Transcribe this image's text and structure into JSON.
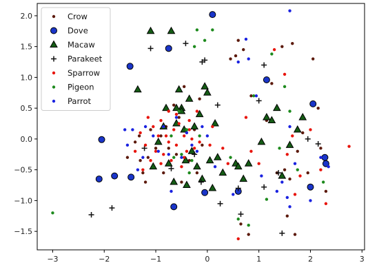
{
  "chart_data": {
    "type": "scatter",
    "title": "",
    "xlabel": "",
    "ylabel": "",
    "xlim": [
      -3.3,
      3.05
    ],
    "ylim": [
      -1.8,
      2.2
    ],
    "xticks": [
      -3,
      -2,
      -1,
      0,
      1,
      2,
      3
    ],
    "yticks": [
      -1.5,
      -1.0,
      -0.5,
      0.0,
      0.5,
      1.0,
      1.5,
      2.0
    ],
    "grid": false,
    "legend_position": "top-left",
    "series": [
      {
        "name": "Crow",
        "marker": "circle-small",
        "color": "#5c1a0c",
        "points": [
          [
            -1.55,
            -0.3
          ],
          [
            -1.4,
            -0.05
          ],
          [
            -1.32,
            0.05
          ],
          [
            -1.3,
            -0.35
          ],
          [
            -1.25,
            -0.55
          ],
          [
            -1.2,
            -0.7
          ],
          [
            -1.15,
            -0.3
          ],
          [
            -1.1,
            0.15
          ],
          [
            -1.05,
            -0.45
          ],
          [
            -1.0,
            -0.15
          ],
          [
            -0.9,
            0.05
          ],
          [
            -0.85,
            -0.55
          ],
          [
            -0.8,
            0.2
          ],
          [
            -0.75,
            -0.15
          ],
          [
            -0.65,
            0.55
          ],
          [
            -0.6,
            -0.25
          ],
          [
            -0.5,
            -0.7
          ],
          [
            -0.55,
            0.35
          ],
          [
            -0.45,
            0.85
          ],
          [
            -0.35,
            -0.35
          ],
          [
            -0.25,
            0.15
          ],
          [
            -0.2,
            -0.55
          ],
          [
            -0.15,
            0.65
          ],
          [
            -0.1,
            -0.1
          ],
          [
            0.45,
            1.3
          ],
          [
            0.55,
            1.35
          ],
          [
            0.6,
            1.6
          ],
          [
            0.65,
            -1.38
          ],
          [
            0.7,
            1.45
          ],
          [
            0.8,
            -1.55
          ],
          [
            0.85,
            0.7
          ],
          [
            1.05,
            -0.05
          ],
          [
            1.15,
            0.3
          ],
          [
            1.25,
            0.9
          ],
          [
            1.35,
            -0.55
          ],
          [
            1.45,
            1.5
          ],
          [
            1.5,
            -0.5
          ],
          [
            1.55,
            -1.25
          ],
          [
            1.65,
            1.55
          ],
          [
            1.7,
            -1.55
          ],
          [
            1.75,
            -0.2
          ],
          [
            1.85,
            0.1
          ],
          [
            1.95,
            -0.55
          ],
          [
            2.05,
            1.3
          ],
          [
            2.15,
            0.5
          ],
          [
            2.2,
            -0.15
          ],
          [
            2.3,
            -0.85
          ],
          [
            1.6,
            -0.65
          ]
        ]
      },
      {
        "name": "Dove",
        "marker": "circle-large",
        "color": "#1a35c9",
        "points": [
          [
            0.1,
            2.02
          ],
          [
            -0.75,
            1.47
          ],
          [
            -1.5,
            1.18
          ],
          [
            -2.05,
            -0.01
          ],
          [
            -2.1,
            -0.65
          ],
          [
            -1.8,
            -0.6
          ],
          [
            -1.48,
            -0.62
          ],
          [
            -0.65,
            -1.1
          ],
          [
            -0.05,
            -0.87
          ],
          [
            0.6,
            -0.85
          ],
          [
            1.15,
            0.96
          ],
          [
            2.05,
            0.57
          ],
          [
            2.28,
            -0.3
          ],
          [
            2.3,
            -0.4
          ],
          [
            2.0,
            -0.78
          ]
        ]
      },
      {
        "name": "Macaw",
        "marker": "triangle",
        "color": "#155c15",
        "points": [
          [
            -1.1,
            1.75
          ],
          [
            -1.35,
            0.8
          ],
          [
            -0.7,
            1.75
          ],
          [
            -0.6,
            0.25
          ],
          [
            -0.55,
            0.8
          ],
          [
            -0.5,
            0.5
          ],
          [
            -0.45,
            0.15
          ],
          [
            -0.42,
            -0.35
          ],
          [
            -0.35,
            0.65
          ],
          [
            -0.3,
            -0.2
          ],
          [
            -0.25,
            0.2
          ],
          [
            -0.2,
            -0.45
          ],
          [
            -0.15,
            0.4
          ],
          [
            -0.1,
            -0.65
          ],
          [
            -0.05,
            0.85
          ],
          [
            0.0,
            0.75
          ],
          [
            0.05,
            -0.35
          ],
          [
            0.15,
            0.25
          ],
          [
            0.2,
            -0.3
          ],
          [
            0.3,
            -0.55
          ],
          [
            0.55,
            -0.4
          ],
          [
            0.6,
            -0.45
          ],
          [
            0.7,
            -0.65
          ],
          [
            0.8,
            -0.4
          ],
          [
            -0.75,
            -0.4
          ],
          [
            -0.65,
            -0.7
          ],
          [
            -0.85,
            0.2
          ],
          [
            -0.95,
            -0.05
          ],
          [
            -1.05,
            -0.45
          ],
          [
            -0.8,
            0.5
          ],
          [
            -0.4,
            -0.75
          ],
          [
            0.1,
            -0.8
          ],
          [
            1.05,
            -0.05
          ],
          [
            1.15,
            0.35
          ],
          [
            1.25,
            0.3
          ],
          [
            1.35,
            0.5
          ],
          [
            1.45,
            -0.6
          ],
          [
            1.6,
            -0.1
          ],
          [
            1.75,
            0.15
          ],
          [
            1.85,
            0.35
          ],
          [
            -0.6,
            0.5
          ],
          [
            -0.5,
            0.45
          ]
        ]
      },
      {
        "name": "Parakeet",
        "marker": "plus",
        "color": "#111111",
        "points": [
          [
            -1.1,
            1.47
          ],
          [
            -0.42,
            1.55
          ],
          [
            -0.1,
            1.25
          ],
          [
            -0.05,
            1.28
          ],
          [
            0.2,
            0.55
          ],
          [
            -1.22,
            -0.15
          ],
          [
            -0.25,
            -0.25
          ],
          [
            -0.7,
            -0.48
          ],
          [
            -0.12,
            -0.7
          ],
          [
            0.25,
            -1.05
          ],
          [
            0.6,
            -0.8
          ],
          [
            0.65,
            -1.22
          ],
          [
            1.1,
            1.2
          ],
          [
            1.0,
            0.62
          ],
          [
            1.1,
            -0.78
          ],
          [
            1.38,
            -0.55
          ],
          [
            1.45,
            -1.53
          ],
          [
            1.95,
            0.0
          ],
          [
            2.15,
            -0.08
          ],
          [
            -1.85,
            -1.12
          ],
          [
            -2.25,
            -1.23
          ]
        ]
      },
      {
        "name": "Sparrow",
        "marker": "circle-small",
        "color": "#e8150c",
        "points": [
          [
            -1.4,
            -0.2
          ],
          [
            -1.3,
            0.1
          ],
          [
            -1.25,
            -0.5
          ],
          [
            -1.2,
            -0.1
          ],
          [
            -1.15,
            0.35
          ],
          [
            -1.1,
            -0.35
          ],
          [
            -1.05,
            0.2
          ],
          [
            -1.0,
            -0.2
          ],
          [
            -0.95,
            0.05
          ],
          [
            -0.9,
            0.3
          ],
          [
            -0.85,
            -0.25
          ],
          [
            -0.8,
            0.05
          ],
          [
            -0.75,
            0.45
          ],
          [
            -0.7,
            -0.35
          ],
          [
            -0.65,
            0.15
          ],
          [
            -0.6,
            -0.1
          ],
          [
            -0.55,
            0.25
          ],
          [
            -0.5,
            -0.45
          ],
          [
            -0.45,
            0.05
          ],
          [
            -0.4,
            -0.2
          ],
          [
            -0.35,
            0.3
          ],
          [
            -0.3,
            0.0
          ],
          [
            -0.25,
            -0.15
          ],
          [
            -0.2,
            0.45
          ],
          [
            -0.15,
            -0.05
          ],
          [
            0.05,
            -0.1
          ],
          [
            0.1,
            0.2
          ],
          [
            0.3,
            -0.15
          ],
          [
            0.4,
            -0.4
          ],
          [
            0.6,
            -1.62
          ],
          [
            0.75,
            0.35
          ],
          [
            0.85,
            -0.2
          ],
          [
            1.0,
            -0.4
          ],
          [
            1.3,
            1.45
          ],
          [
            1.5,
            1.05
          ],
          [
            1.55,
            -0.25
          ],
          [
            1.65,
            0.05
          ],
          [
            1.7,
            -0.9
          ],
          [
            1.8,
            -0.6
          ],
          [
            2.0,
            0.15
          ],
          [
            2.2,
            -0.5
          ],
          [
            2.3,
            -1.05
          ],
          [
            2.75,
            -0.12
          ],
          [
            -0.75,
            -0.05
          ],
          [
            -0.6,
            0.4
          ],
          [
            -0.45,
            -0.3
          ],
          [
            -0.35,
            0.15
          ],
          [
            -0.9,
            -0.4
          ]
        ]
      },
      {
        "name": "Pigeon",
        "marker": "circle-small",
        "color": "#1d8a1d",
        "points": [
          [
            -0.2,
            1.77
          ],
          [
            0.1,
            1.77
          ],
          [
            -0.05,
            1.6
          ],
          [
            -0.25,
            1.5
          ],
          [
            -0.55,
            0.45
          ],
          [
            -0.4,
            0.15
          ],
          [
            -0.3,
            -0.35
          ],
          [
            -0.15,
            0.05
          ],
          [
            -0.5,
            -0.25
          ],
          [
            -0.7,
            0.05
          ],
          [
            -0.65,
            -0.3
          ],
          [
            0.45,
            -0.3
          ],
          [
            0.6,
            -1.3
          ],
          [
            0.8,
            -1.4
          ],
          [
            0.9,
            0.7
          ],
          [
            1.15,
            -0.98
          ],
          [
            1.25,
            1.38
          ],
          [
            1.4,
            -0.15
          ],
          [
            1.5,
            0.85
          ],
          [
            1.6,
            0.45
          ],
          [
            1.75,
            -0.5
          ],
          [
            2.25,
            -0.7
          ],
          [
            -3.0,
            -1.2
          ],
          [
            -0.35,
            -0.55
          ]
        ]
      },
      {
        "name": "Parrot",
        "marker": "circle-small",
        "color": "#1a22e0",
        "points": [
          [
            1.6,
            2.08
          ],
          [
            -1.6,
            0.15
          ],
          [
            -1.45,
            0.15
          ],
          [
            -1.55,
            -0.1
          ],
          [
            -1.35,
            -0.5
          ],
          [
            -1.25,
            -0.3
          ],
          [
            -1.2,
            0.2
          ],
          [
            -1.05,
            0.05
          ],
          [
            -0.95,
            -0.2
          ],
          [
            -0.85,
            0.2
          ],
          [
            -0.75,
            -0.25
          ],
          [
            -0.6,
            0.35
          ],
          [
            -0.5,
            -0.3
          ],
          [
            -0.4,
            0.1
          ],
          [
            -0.3,
            -0.1
          ],
          [
            -0.2,
            -0.2
          ],
          [
            -0.1,
            0.2
          ],
          [
            0.0,
            0.05
          ],
          [
            0.15,
            -0.45
          ],
          [
            0.6,
            1.25
          ],
          [
            0.75,
            1.62
          ],
          [
            0.8,
            1.3
          ],
          [
            0.95,
            0.7
          ],
          [
            1.05,
            -0.6
          ],
          [
            1.35,
            -0.85
          ],
          [
            1.45,
            -0.7
          ],
          [
            1.55,
            -0.95
          ],
          [
            1.6,
            0.2
          ],
          [
            1.7,
            -0.4
          ],
          [
            2.0,
            -1.0
          ],
          [
            2.2,
            -0.3
          ],
          [
            2.35,
            -0.45
          ],
          [
            -0.7,
            -0.85
          ],
          [
            0.5,
            -0.9
          ],
          [
            1.6,
            -1.1
          ]
        ]
      }
    ]
  }
}
